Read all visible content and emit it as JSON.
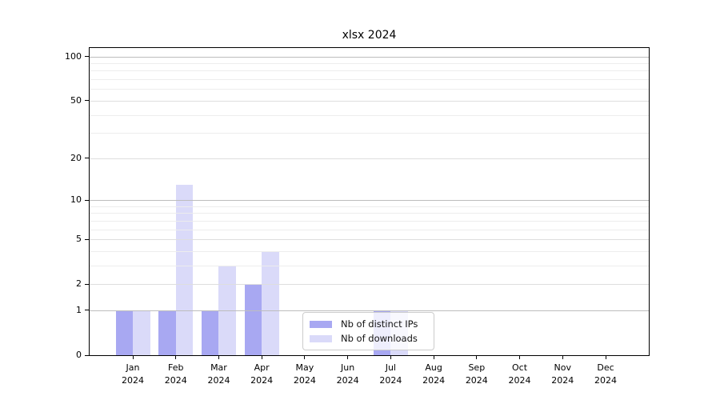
{
  "chart_data": {
    "type": "bar",
    "title": "xlsx 2024",
    "categories": [
      "Jan",
      "Feb",
      "Mar",
      "Apr",
      "May",
      "Jun",
      "Jul",
      "Aug",
      "Sep",
      "Oct",
      "Nov",
      "Dec"
    ],
    "x_tick_second_line": "2024",
    "series": [
      {
        "name": "Nb of distinct IPs",
        "color": "#a8a8f2",
        "values": [
          1,
          1,
          1,
          2,
          0,
          0,
          1,
          0,
          0,
          0,
          0,
          0
        ]
      },
      {
        "name": "Nb of downloads",
        "color": "#dadaf9",
        "values": [
          1,
          13,
          3,
          4,
          0,
          0,
          1,
          0,
          0,
          0,
          0,
          0
        ]
      }
    ],
    "y_scale": "log1p",
    "ylim": [
      0,
      112
    ],
    "y_ticks_major": [
      0,
      1,
      2,
      5,
      10,
      20,
      50,
      100
    ],
    "y_gridlines_minor": [
      3,
      4,
      6,
      7,
      8,
      9,
      30,
      40,
      60,
      70,
      80,
      90
    ],
    "grid": "on",
    "legend": {
      "position": "lower center"
    }
  }
}
